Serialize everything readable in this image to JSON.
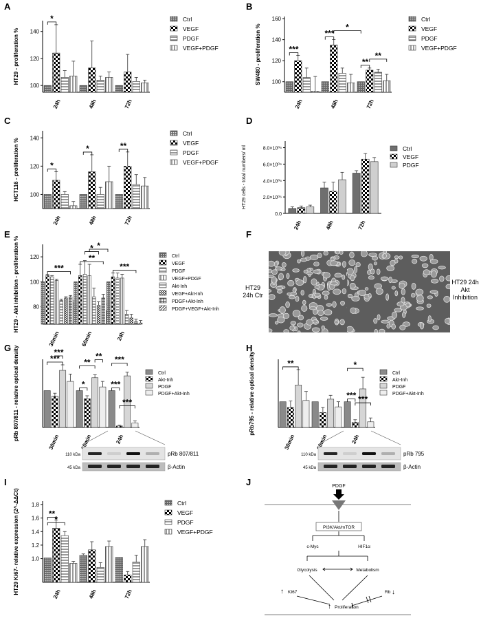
{
  "panels": {
    "A": "A",
    "B": "B",
    "C": "C",
    "D": "D",
    "E": "E",
    "F": "F",
    "G": "G",
    "H": "H",
    "I": "I",
    "J": "J"
  },
  "colors": {
    "bar_stroke": "#333333",
    "blot_band": "#111111",
    "micro_bg": "#5d5d5d"
  },
  "chart_data": [
    {
      "id": "A",
      "type": "bar",
      "ylabel": "HT29 - proliferation %",
      "categories": [
        "24h",
        "48h",
        "72h"
      ],
      "yticks": [
        "100",
        "120",
        "140"
      ],
      "ylim": [
        95,
        148
      ],
      "series": [
        {
          "name": "Ctrl",
          "values": [
            100,
            100,
            100
          ],
          "errors": [
            0,
            0,
            0
          ]
        },
        {
          "name": "VEGF",
          "values": [
            124,
            113,
            110
          ],
          "errors": [
            21,
            20,
            13
          ]
        },
        {
          "name": "PDGF",
          "values": [
            106,
            104,
            103
          ],
          "errors": [
            5,
            3,
            3
          ]
        },
        {
          "name": "VEGF+PDGF",
          "values": [
            107,
            106,
            102
          ],
          "errors": [
            11,
            4,
            2
          ]
        }
      ],
      "significance": [
        {
          "text": "*",
          "from": [
            0,
            0
          ],
          "to": [
            0,
            1
          ]
        }
      ]
    },
    {
      "id": "B",
      "type": "bar",
      "ylabel": "SW480 - proliferation %",
      "categories": [
        "24h",
        "48h",
        "72h"
      ],
      "yticks": [
        "100",
        "120",
        "140",
        "160"
      ],
      "ylim": [
        90,
        162
      ],
      "series": [
        {
          "name": "Ctrl",
          "values": [
            100,
            100,
            100
          ],
          "errors": [
            0,
            0,
            0
          ]
        },
        {
          "name": "VEGF",
          "values": [
            120,
            135,
            111
          ],
          "errors": [
            5,
            5,
            2
          ]
        },
        {
          "name": "PDGF",
          "values": [
            104,
            108,
            109
          ],
          "errors": [
            9,
            5,
            3
          ]
        },
        {
          "name": "VEGF+PDGF",
          "values": [
            91,
            99,
            101
          ],
          "errors": [
            14,
            8,
            6
          ]
        }
      ],
      "significance": [
        {
          "text": "***",
          "from": [
            0,
            0
          ],
          "to": [
            0,
            1
          ]
        },
        {
          "text": "***",
          "from": [
            1,
            0
          ],
          "to": [
            1,
            1
          ]
        },
        {
          "text": "*",
          "from": [
            1,
            1
          ],
          "to": [
            2,
            0
          ]
        },
        {
          "text": "**",
          "from": [
            2,
            0
          ],
          "to": [
            2,
            1
          ]
        },
        {
          "text": "**",
          "from": [
            2,
            1
          ],
          "to": [
            2,
            3
          ]
        }
      ]
    },
    {
      "id": "C",
      "type": "bar",
      "ylabel": "HCT116 - proliferation %",
      "categories": [
        "24h",
        "48h",
        "72h"
      ],
      "yticks": [
        "100",
        "120",
        "140"
      ],
      "ylim": [
        90,
        145
      ],
      "series": [
        {
          "name": "Ctrl",
          "values": [
            100,
            100,
            100
          ],
          "errors": [
            0,
            0,
            0
          ]
        },
        {
          "name": "VEGF",
          "values": [
            110,
            116,
            120
          ],
          "errors": [
            6,
            12,
            10
          ]
        },
        {
          "name": "PDGF",
          "values": [
            100,
            100,
            107
          ],
          "errors": [
            2,
            5,
            7
          ]
        },
        {
          "name": "VEGF+PDGF",
          "values": [
            92,
            109,
            106
          ],
          "errors": [
            3,
            11,
            6
          ]
        }
      ],
      "significance": [
        {
          "text": "*",
          "from": [
            0,
            0
          ],
          "to": [
            0,
            1
          ]
        },
        {
          "text": "*",
          "from": [
            1,
            0
          ],
          "to": [
            1,
            1
          ]
        },
        {
          "text": "**",
          "from": [
            2,
            0
          ],
          "to": [
            2,
            1
          ]
        }
      ]
    },
    {
      "id": "D",
      "type": "bar",
      "ylabel": "HT29 cells - total numbers/ ml",
      "categories": [
        "24h",
        "48h",
        "72h"
      ],
      "yticks": [
        "0.0",
        "2.0×10⁰⁶",
        "4.0×10⁰⁶",
        "6.0×10⁰⁶",
        "8.0×10⁰⁶"
      ],
      "ylim": [
        0,
        8.8
      ],
      "series": [
        {
          "name": "Ctrl",
          "values": [
            0.6,
            3.1,
            4.9
          ],
          "errors": [
            0.2,
            0.7,
            0.3
          ]
        },
        {
          "name": "VEGF",
          "values": [
            0.7,
            2.7,
            6.6
          ],
          "errors": [
            0.2,
            1.1,
            0.7
          ]
        },
        {
          "name": "PDGF",
          "values": [
            0.8,
            4.1,
            6.3
          ],
          "errors": [
            0.2,
            0.9,
            0.5
          ]
        }
      ],
      "significance": []
    },
    {
      "id": "E",
      "type": "bar",
      "ylabel": "HT29 - Akt inhibition - proliferation %",
      "categories": [
        "30min",
        "60min",
        "24h"
      ],
      "yticks": [
        "80",
        "100",
        "120"
      ],
      "ylim": [
        66,
        130
      ],
      "series": [
        {
          "name": "Ctrl",
          "values": [
            100,
            100,
            100
          ],
          "errors": [
            0,
            0,
            0
          ]
        },
        {
          "name": "VEGF",
          "values": [
            105,
            105,
            104
          ],
          "errors": [
            1,
            9,
            3
          ]
        },
        {
          "name": "PDGF",
          "values": [
            104,
            106,
            103
          ],
          "errors": [
            1,
            11,
            4
          ]
        },
        {
          "name": "VEGF+PDGF",
          "values": [
            101,
            105,
            103
          ],
          "errors": [
            1,
            9,
            3
          ]
        },
        {
          "name": "Akt-Inh",
          "values": [
            85,
            88,
            74
          ],
          "errors": [
            1,
            7,
            3
          ]
        },
        {
          "name": "VEGF+Akt-Inh",
          "values": [
            87,
            81,
            71
          ],
          "errors": [
            1,
            3,
            3
          ]
        },
        {
          "name": "PDGF+Akt-Inh",
          "values": [
            88,
            87,
            68
          ],
          "errors": [
            1,
            3,
            2
          ]
        },
        {
          "name": "PDGF+VEGF+Akt-Inh",
          "values": [
            84,
            77,
            67
          ],
          "errors": [
            1,
            5,
            2
          ]
        }
      ],
      "significance": [
        {
          "text": "***",
          "from": [
            0,
            1
          ],
          "to": [
            0,
            6
          ]
        },
        {
          "text": "**",
          "from": [
            1,
            1
          ],
          "to": [
            1,
            6
          ]
        },
        {
          "text": "*",
          "from": [
            1,
            2
          ],
          "to": [
            1,
            5
          ]
        },
        {
          "text": "*",
          "from": [
            1,
            3
          ],
          "to": [
            1,
            7
          ]
        },
        {
          "text": "***",
          "from": [
            2,
            1
          ],
          "to": [
            2,
            6
          ]
        }
      ]
    },
    {
      "id": "G",
      "type": "bar",
      "ylabel": "pRb 807/811 - relative optical density",
      "categories": [
        "30min",
        "60min",
        "24h"
      ],
      "yticks": [],
      "ylim": [
        0,
        185
      ],
      "series": [
        {
          "name": "Ctrl",
          "values": [
            100,
            100,
            100
          ],
          "errors": [
            0,
            0,
            0
          ]
        },
        {
          "name": "Akt-Inh",
          "values": [
            85,
            78,
            4
          ],
          "errors": [
            8,
            8,
            2
          ]
        },
        {
          "name": "PDGF",
          "values": [
            155,
            135,
            140
          ],
          "errors": [
            15,
            8,
            10
          ]
        },
        {
          "name": "PDGF+Akt-Inh",
          "values": [
            125,
            110,
            12
          ],
          "errors": [
            20,
            15,
            6
          ]
        }
      ],
      "significance": [
        {
          "text": "***",
          "from": [
            0,
            0
          ],
          "to": [
            0,
            2
          ]
        },
        {
          "text": "***",
          "from": [
            0,
            1
          ],
          "to": [
            0,
            2
          ]
        },
        {
          "text": "*",
          "from": [
            1,
            0
          ],
          "to": [
            1,
            1
          ]
        },
        {
          "text": "**",
          "from": [
            1,
            0
          ],
          "to": [
            1,
            2
          ]
        },
        {
          "text": "**",
          "from": [
            1,
            2
          ],
          "to": [
            1,
            3
          ]
        },
        {
          "text": "***",
          "from": [
            2,
            0
          ],
          "to": [
            2,
            1
          ]
        },
        {
          "text": "***",
          "from": [
            2,
            0
          ],
          "to": [
            2,
            2
          ]
        },
        {
          "text": "***",
          "from": [
            2,
            1
          ],
          "to": [
            2,
            3
          ]
        }
      ],
      "blot": {
        "size_label": "110 kDa",
        "band_label": "pRb 807/811",
        "loading_size": "45 kDa",
        "loading_label": "β-Actin"
      }
    },
    {
      "id": "H",
      "type": "bar",
      "ylabel": "pRb795 - relative optical density",
      "categories": [
        "30min",
        "60min",
        "24h"
      ],
      "yticks": [],
      "ylim": [
        0,
        265
      ],
      "series": [
        {
          "name": "Ctrl",
          "values": [
            100,
            100,
            100
          ],
          "errors": [
            0,
            0,
            0
          ]
        },
        {
          "name": "Akt-Inh",
          "values": [
            78,
            58,
            20
          ],
          "errors": [
            25,
            20,
            10
          ]
        },
        {
          "name": "PDGF",
          "values": [
            165,
            110,
            150
          ],
          "errors": [
            60,
            15,
            45
          ]
        },
        {
          "name": "PDGF+Akt-Inh",
          "values": [
            105,
            80,
            22
          ],
          "errors": [
            35,
            20,
            15
          ]
        }
      ],
      "significance": [
        {
          "text": "**",
          "from": [
            0,
            0
          ],
          "to": [
            0,
            2
          ]
        },
        {
          "text": "***",
          "from": [
            2,
            0
          ],
          "to": [
            2,
            1
          ]
        },
        {
          "text": "*",
          "from": [
            2,
            0
          ],
          "to": [
            2,
            2
          ]
        },
        {
          "text": "***",
          "from": [
            2,
            1
          ],
          "to": [
            2,
            3
          ]
        }
      ],
      "blot": {
        "size_label": "110 kDa",
        "band_label": "pRb 795",
        "loading_size": "45 kDa",
        "loading_label": "β-Actin"
      }
    },
    {
      "id": "I",
      "type": "bar",
      "ylabel": "HT29 Ki67- relative expression (2^-ΔΔCt)",
      "categories": [
        "24h",
        "48h",
        "72h"
      ],
      "yticks": [
        "1.0",
        "1.2",
        "1.4",
        "1.6",
        "1.8"
      ],
      "ylim": [
        0.65,
        1.85
      ],
      "series": [
        {
          "name": "Ctrl",
          "values": [
            1.01,
            1.05,
            1.02
          ],
          "errors": [
            0,
            0.02,
            0
          ]
        },
        {
          "name": "VEGF",
          "values": [
            1.45,
            1.13,
            0.76
          ],
          "errors": [
            0.12,
            0.12,
            0.05
          ]
        },
        {
          "name": "PDGF",
          "values": [
            1.34,
            0.87,
            0.95
          ],
          "errors": [
            0.06,
            0.07,
            0.1
          ]
        },
        {
          "name": "VEGF+PDGF",
          "values": [
            0.93,
            1.18,
            1.18
          ],
          "errors": [
            0.03,
            0.08,
            0.1
          ]
        }
      ],
      "significance": [
        {
          "text": "**",
          "from": [
            0,
            0
          ],
          "to": [
            0,
            1
          ]
        },
        {
          "text": "*",
          "from": [
            0,
            0
          ],
          "to": [
            0,
            2
          ]
        }
      ]
    }
  ],
  "microscopy": {
    "left_label": "HT29\n24h Ctr",
    "right_label": "HT29 24h\nAkt\nInhibition"
  },
  "pathway": {
    "top": "PDGF",
    "hub": "PI3K/Akt/mTOR",
    "left_target": "c-Myc",
    "right_target": "HIF1α",
    "left_process": "Glycolysis",
    "right_process": "Metabolism",
    "ki67": "KI67",
    "rb": "Rb",
    "result": "Proliferation"
  }
}
